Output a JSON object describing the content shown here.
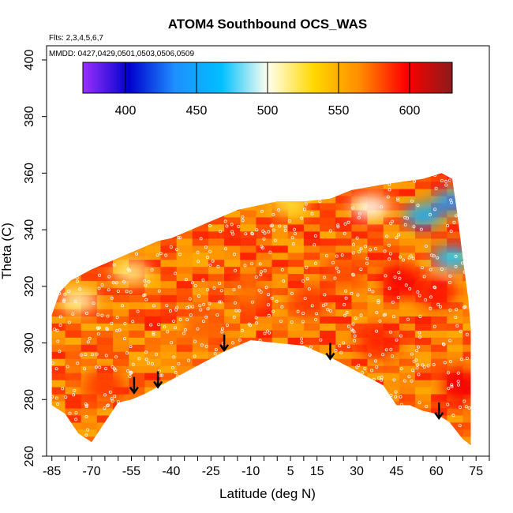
{
  "chart_data": {
    "type": "heatmap",
    "title": "ATOM4 Southbound OCS_WAS",
    "annotations": [
      "Flts: 2,3,4,5,6,7",
      "MMDD: 0427,0429,0501,0503,0506,0509"
    ],
    "xlabel": "Latitude (deg N)",
    "ylabel": "Theta (C)",
    "xlim": [
      -87,
      80
    ],
    "ylim": [
      260,
      405
    ],
    "x_ticks": [
      -85,
      -70,
      -55,
      -40,
      -25,
      -10,
      5,
      15,
      30,
      45,
      60,
      75
    ],
    "y_ticks": [
      260,
      280,
      300,
      320,
      340,
      360,
      380,
      400
    ],
    "colorbar": {
      "range": [
        370,
        630
      ],
      "ticks": [
        400,
        450,
        500,
        550,
        600
      ],
      "colors": [
        "#9b30ff",
        "#0000cd",
        "#1e90ff",
        "#00bfff",
        "#fffff0",
        "#ffd700",
        "#ff8c00",
        "#ff0000",
        "#8b1a1a"
      ]
    },
    "field_outline": [
      [
        -85,
        278
      ],
      [
        -85,
        310
      ],
      [
        -82,
        318
      ],
      [
        -78,
        322
      ],
      [
        -74,
        324
      ],
      [
        -70,
        326
      ],
      [
        -65,
        328
      ],
      [
        -60,
        330
      ],
      [
        -55,
        332
      ],
      [
        -50,
        334
      ],
      [
        -45,
        336
      ],
      [
        -40,
        337
      ],
      [
        -35,
        339
      ],
      [
        -30,
        341
      ],
      [
        -25,
        343
      ],
      [
        -20,
        345
      ],
      [
        -15,
        347
      ],
      [
        -10,
        348
      ],
      [
        -5,
        349
      ],
      [
        0,
        350
      ],
      [
        10,
        350
      ],
      [
        20,
        351
      ],
      [
        28,
        354
      ],
      [
        40,
        356
      ],
      [
        55,
        358
      ],
      [
        62,
        360
      ],
      [
        66,
        358
      ],
      [
        68,
        345
      ],
      [
        70,
        330
      ],
      [
        72,
        316
      ],
      [
        73,
        305
      ],
      [
        73,
        264
      ],
      [
        70,
        266
      ],
      [
        65,
        272
      ],
      [
        60,
        275
      ],
      [
        55,
        276
      ],
      [
        50,
        278
      ],
      [
        45,
        278
      ],
      [
        40,
        285
      ],
      [
        30,
        290
      ],
      [
        20,
        295
      ],
      [
        10,
        299
      ],
      [
        0,
        300
      ],
      [
        -10,
        301
      ],
      [
        -20,
        297
      ],
      [
        -30,
        292
      ],
      [
        -40,
        287
      ],
      [
        -50,
        282
      ],
      [
        -55,
        280
      ],
      [
        -60,
        279
      ],
      [
        -65,
        272
      ],
      [
        -70,
        265
      ],
      [
        -75,
        268
      ],
      [
        -80,
        275
      ]
    ],
    "field_blobs": [
      {
        "lat": 47,
        "theta": 322,
        "value": 598
      },
      {
        "lat": 12,
        "theta": 315,
        "value": 585
      },
      {
        "lat": 38,
        "theta": 300,
        "value": 590
      },
      {
        "lat": 60,
        "theta": 318,
        "value": 592
      },
      {
        "lat": -28,
        "theta": 305,
        "value": 575
      },
      {
        "lat": -10,
        "theta": 318,
        "value": 572
      },
      {
        "lat": 70,
        "theta": 285,
        "value": 600
      },
      {
        "lat": -65,
        "theta": 285,
        "value": 585
      },
      {
        "lat": 25,
        "theta": 325,
        "value": 580
      }
    ],
    "low_regions": [
      {
        "lat": 55,
        "theta": 345,
        "value": 450
      },
      {
        "lat": 66,
        "theta": 350,
        "value": 440
      },
      {
        "lat": 35,
        "theta": 348,
        "value": 500
      },
      {
        "lat": 66,
        "theta": 330,
        "value": 470
      },
      {
        "lat": -75,
        "theta": 315,
        "value": 510
      },
      {
        "lat": -55,
        "theta": 325,
        "value": 515
      },
      {
        "lat": 5,
        "theta": 349,
        "value": 525
      }
    ],
    "tropopause_arrows": [
      {
        "lat": -54,
        "theta": 288
      },
      {
        "lat": -45,
        "theta": 290
      },
      {
        "lat": -20,
        "theta": 303
      },
      {
        "lat": 20,
        "theta": 300
      },
      {
        "lat": 61,
        "theta": 279
      }
    ]
  }
}
